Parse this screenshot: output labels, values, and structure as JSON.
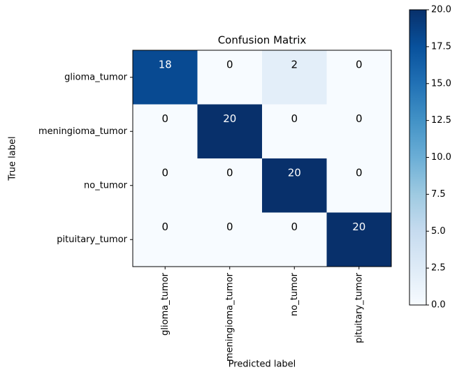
{
  "chart_data": {
    "type": "heatmap",
    "title": "Confusion Matrix",
    "xlabel": "Predicted label",
    "ylabel": "True label",
    "x_categories": [
      "glioma_tumor",
      "meningioma_tumor",
      "no_tumor",
      "pituitary_tumor"
    ],
    "y_categories": [
      "glioma_tumor",
      "meningioma_tumor",
      "no_tumor",
      "pituitary_tumor"
    ],
    "values": [
      [
        18,
        0,
        2,
        0
      ],
      [
        0,
        20,
        0,
        0
      ],
      [
        0,
        0,
        20,
        0
      ],
      [
        0,
        0,
        0,
        20
      ]
    ],
    "colormap": "Blues",
    "colorbar_lim": [
      0,
      20
    ],
    "colorbar_ticks": [
      {
        "value": 0,
        "label": "0.0"
      },
      2.5,
      {
        "value": 5,
        "label": "5.0"
      },
      7.5,
      {
        "value": 10,
        "label": "10.0"
      },
      12.5,
      {
        "value": 15,
        "label": "15.0"
      },
      17.5,
      {
        "value": 20,
        "label": "20.0"
      }
    ]
  }
}
